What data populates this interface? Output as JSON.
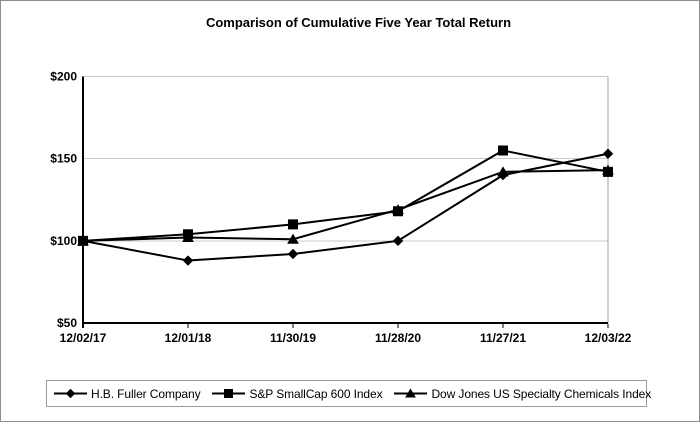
{
  "title": "Comparison of Cumulative Five Year Total Return",
  "chart_data": {
    "type": "line",
    "categories": [
      "12/02/17",
      "12/01/18",
      "11/30/19",
      "11/28/20",
      "11/27/21",
      "12/03/22"
    ],
    "series": [
      {
        "name": "H.B. Fuller Company",
        "marker": "diamond",
        "values": [
          100,
          88,
          92,
          100,
          140,
          153
        ]
      },
      {
        "name": "S&P SmallCap 600 Index",
        "marker": "square",
        "values": [
          100,
          104,
          110,
          118,
          155,
          142
        ]
      },
      {
        "name": "Dow Jones US Specialty Chemicals Index",
        "marker": "triangle",
        "values": [
          100,
          102,
          101,
          119,
          142,
          143
        ]
      }
    ],
    "ylim": [
      50,
      200
    ],
    "yticks": [
      50,
      100,
      150,
      200
    ],
    "ytick_labels": [
      "$50",
      "$100",
      "$150",
      "$200"
    ],
    "line_color": "#000000",
    "gridline_color": "#c9c9c9",
    "plot_border_color": "#a0a0a0",
    "legend_position": "bottom"
  }
}
